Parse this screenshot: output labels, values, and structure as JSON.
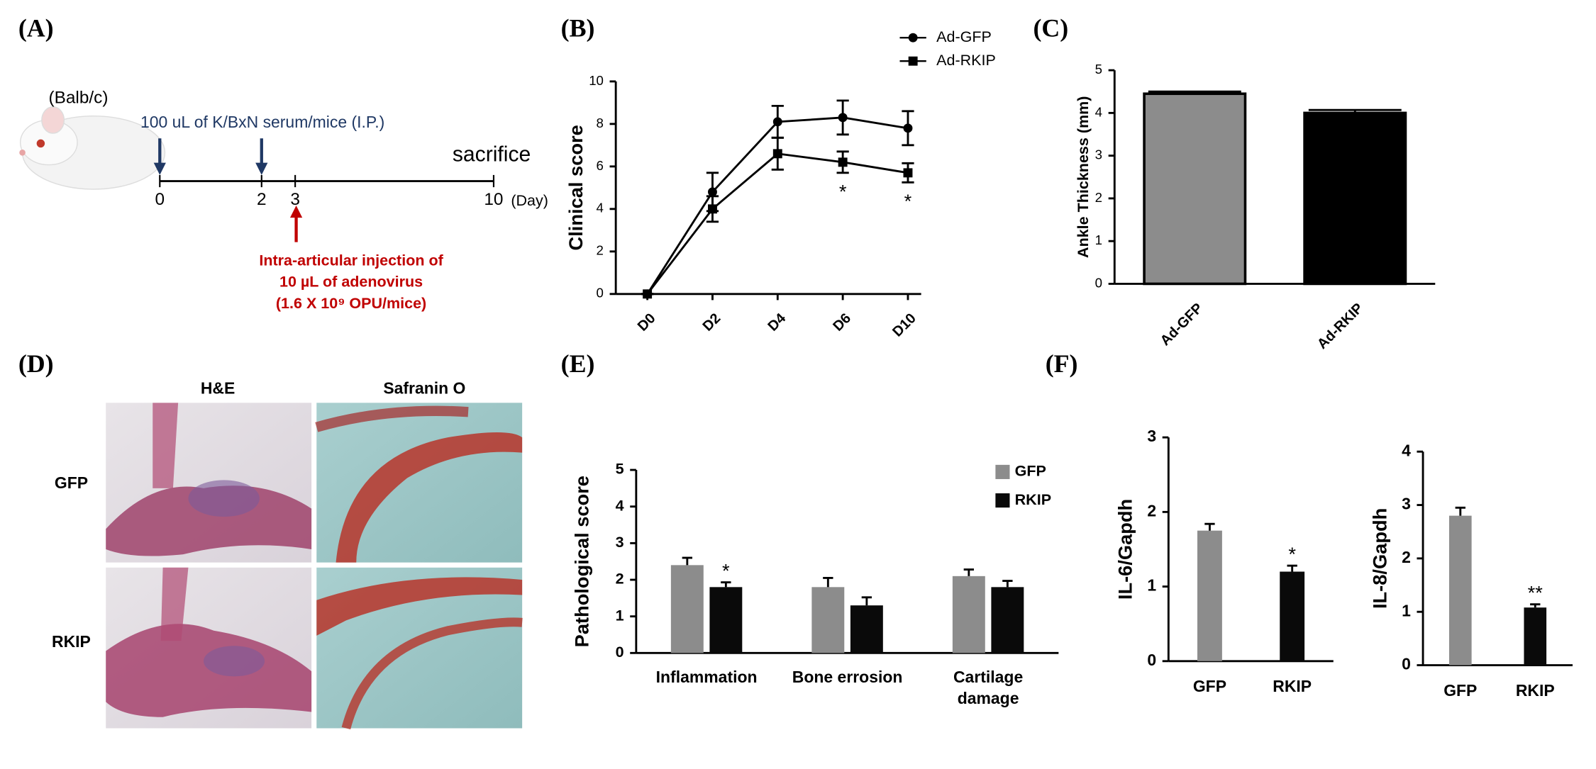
{
  "panel_labels": [
    "(A)",
    "(B)",
    "(C)",
    "(D)",
    "(E)",
    "(F)"
  ],
  "panel_a": {
    "mouse": "(Balb/c)",
    "serum": "100 uL of K/BxN serum/mice (I.P.)",
    "sacrifice": "sacrifice",
    "days": [
      "0",
      "2",
      "3",
      "10"
    ],
    "day_unit": "(Day)",
    "injection": [
      "Intra-articular injection of",
      "10 µL of adenovirus",
      "(1.6 X 10⁹ OPU/mice)"
    ]
  },
  "panel_d": {
    "columns": [
      "H&E",
      "Safranin O"
    ],
    "rows": [
      "GFP",
      "RKIP"
    ]
  },
  "chart_data": [
    {
      "type": "line",
      "ylabel": "Clinical score",
      "categories": [
        "D0",
        "D2",
        "D4",
        "D6",
        "D10"
      ],
      "ylim": [
        0,
        10
      ],
      "yticks": [
        0,
        2,
        4,
        6,
        8,
        10
      ],
      "legend": "top-right",
      "series": [
        {
          "name": "Ad-GFP",
          "color": "#000000",
          "marker": "circle",
          "values": [
            0,
            4.8,
            8.1,
            8.3,
            7.8
          ],
          "errors": [
            0,
            0.9,
            0.75,
            0.8,
            0.8
          ]
        },
        {
          "name": "Ad-RKIP",
          "color": "#000000",
          "marker": "square",
          "values": [
            0,
            4.0,
            6.6,
            6.2,
            5.7
          ],
          "errors": [
            0,
            0.6,
            0.75,
            0.5,
            0.45
          ],
          "significance": [
            null,
            null,
            null,
            "*",
            "*"
          ]
        }
      ]
    },
    {
      "type": "bar",
      "ylabel": "Ankle Thickness (mm)",
      "categories": [
        "Ad-GFP",
        "Ad-RKIP"
      ],
      "values": [
        4.45,
        4.0
      ],
      "errors": [
        0.05,
        0.07
      ],
      "colors": [
        "#8c8c8c",
        "#000000"
      ],
      "ylim": [
        0,
        5
      ],
      "yticks": [
        0,
        1,
        2,
        3,
        4,
        5
      ]
    },
    {
      "type": "grouped_bar",
      "ylabel": "Pathological score",
      "categories": [
        "Inflammation",
        "Bone errosion",
        "Cartilage damage"
      ],
      "ylim": [
        0,
        5
      ],
      "yticks": [
        0,
        1,
        2,
        3,
        4,
        5
      ],
      "legend": "top-right",
      "series": [
        {
          "name": "GFP",
          "color": "#8c8c8c",
          "values": [
            2.4,
            1.8,
            2.1
          ],
          "errors": [
            0.2,
            0.25,
            0.18
          ]
        },
        {
          "name": "RKIP",
          "color": "#0a0a0a",
          "values": [
            1.8,
            1.3,
            1.8
          ],
          "errors": [
            0.13,
            0.22,
            0.17
          ],
          "significance": [
            "*",
            null,
            null
          ]
        }
      ]
    },
    {
      "type": "bar",
      "ylabel": "IL-6/Gapdh",
      "categories": [
        "GFP",
        "RKIP"
      ],
      "values": [
        1.75,
        1.2
      ],
      "errors": [
        0.09,
        0.08
      ],
      "colors": [
        "#8c8c8c",
        "#0a0a0a"
      ],
      "significance": [
        null,
        "*"
      ],
      "ylim": [
        0,
        3
      ],
      "yticks": [
        0,
        1,
        2,
        3
      ]
    },
    {
      "type": "bar",
      "ylabel": "IL-8/Gapdh",
      "categories": [
        "GFP",
        "RKIP"
      ],
      "values": [
        2.8,
        1.08
      ],
      "errors": [
        0.15,
        0.06
      ],
      "colors": [
        "#8c8c8c",
        "#0a0a0a"
      ],
      "significance": [
        null,
        "**"
      ],
      "ylim": [
        0,
        4
      ],
      "yticks": [
        0,
        1,
        2,
        3,
        4
      ]
    }
  ]
}
